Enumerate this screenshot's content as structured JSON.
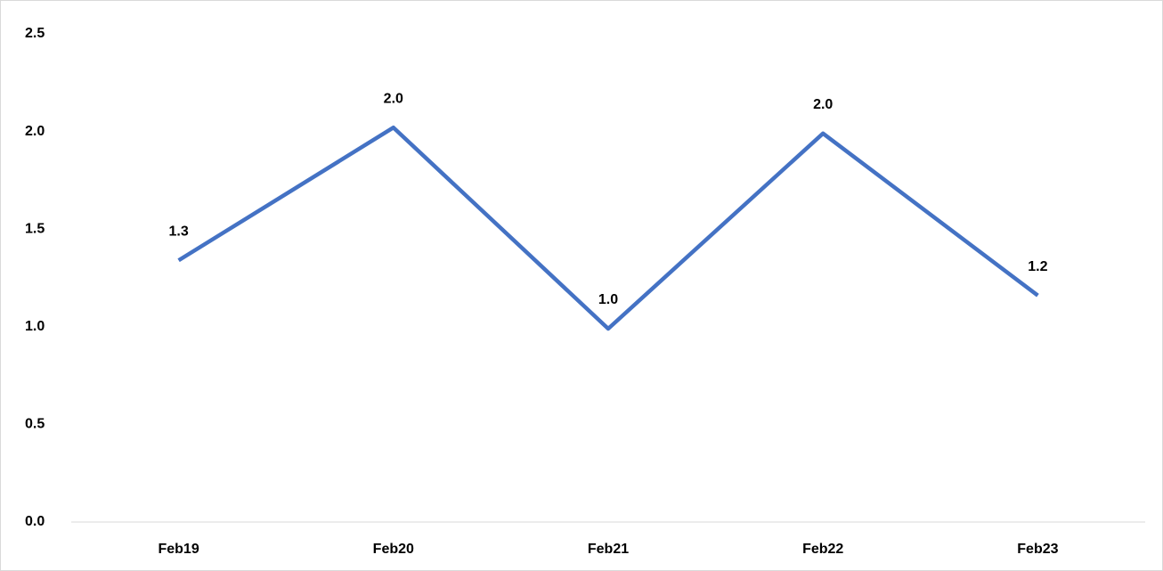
{
  "chart_data": {
    "type": "line",
    "categories": [
      "Feb19",
      "Feb20",
      "Feb21",
      "Feb22",
      "Feb23"
    ],
    "series": [
      {
        "color": "#4472c4",
        "values": [
          1.34,
          2.02,
          0.99,
          1.99,
          1.16
        ],
        "value_labels": [
          "1.3",
          "2.0",
          "1.0",
          "2.0",
          "1.2"
        ]
      }
    ],
    "ylim": [
      0,
      2.5
    ],
    "yticks": [
      {
        "value": 0,
        "label": "0.0"
      },
      0.5,
      {
        "value": 1,
        "label": "1.0"
      },
      1.5,
      {
        "value": 2,
        "label": "2.0"
      },
      2.5
    ],
    "grid": false
  }
}
